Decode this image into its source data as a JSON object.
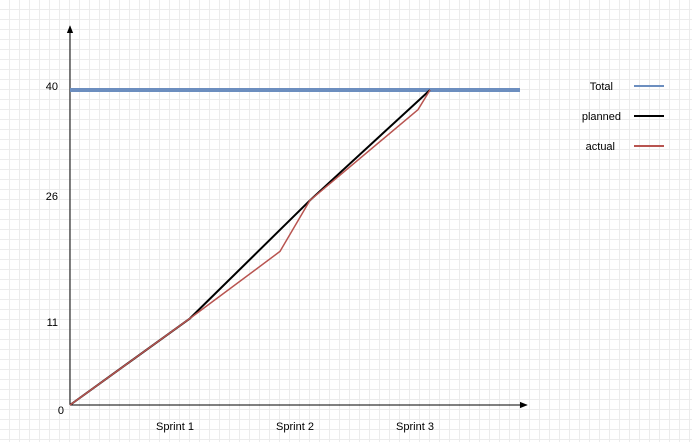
{
  "chart_data": {
    "type": "line",
    "title": "",
    "xlabel": "",
    "ylabel": "",
    "x_tick_labels": [
      "Sprint 1",
      "Sprint 2",
      "Sprint 3"
    ],
    "y_tick_labels": [
      "0",
      "11",
      "26",
      "40"
    ],
    "ylim": [
      0,
      40
    ],
    "grid": true,
    "legend_position": "right",
    "series": [
      {
        "name": "Total",
        "color": "#6c8ebf",
        "points": [
          [
            0,
            40
          ],
          [
            3.75,
            40
          ]
        ]
      },
      {
        "name": "planned",
        "color": "#000000",
        "points": [
          [
            0,
            0
          ],
          [
            1,
            11
          ],
          [
            2,
            26
          ],
          [
            3,
            40
          ]
        ]
      },
      {
        "name": "actual",
        "color": "#b85450",
        "points": [
          [
            0,
            0
          ],
          [
            1,
            11
          ],
          [
            1.75,
            19.5
          ],
          [
            2,
            26
          ],
          [
            2.9,
            37.5
          ],
          [
            3,
            40
          ]
        ]
      }
    ]
  }
}
